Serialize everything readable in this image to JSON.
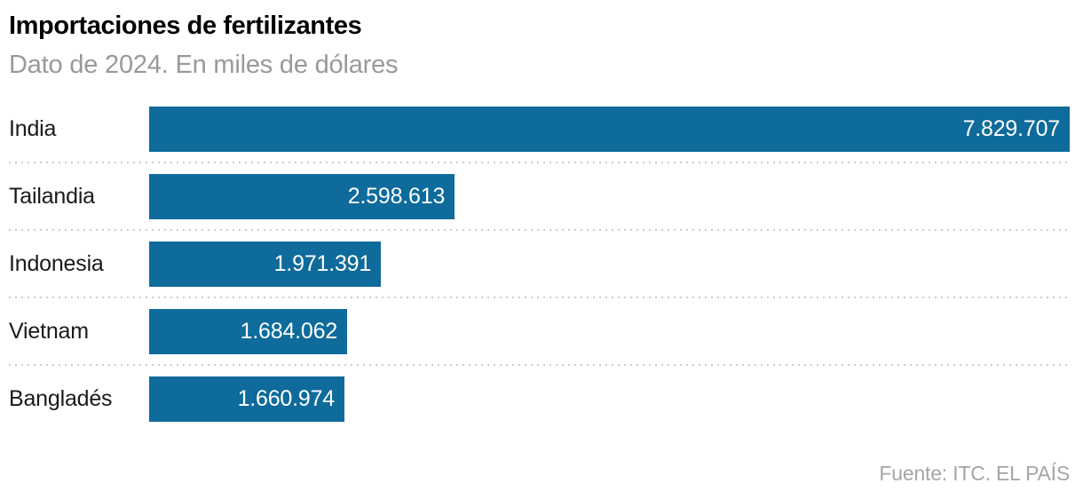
{
  "header": {
    "title": "Importaciones de fertilizantes",
    "subtitle": "Dato de 2024. En miles de dólares"
  },
  "chart_data": {
    "type": "bar",
    "orientation": "horizontal",
    "title": "Importaciones de fertilizantes",
    "subtitle": "Dato de 2024. En miles de dólares",
    "xlabel": "",
    "ylabel": "",
    "categories": [
      "India",
      "Tailandia",
      "Indonesia",
      "Vietnam",
      "Bangladés"
    ],
    "values": [
      7829707,
      2598613,
      1971391,
      1684062,
      1660974
    ],
    "value_labels": [
      "7.829.707",
      "2.598.613",
      "1.971.391",
      "1.684.062",
      "1.660.974"
    ],
    "xlim": [
      0,
      7829707
    ],
    "grid": false,
    "legend": false,
    "bar_color": "#0e6b9b",
    "value_label_position": "inside-end",
    "value_label_color": "#ffffff",
    "separator_style": "dotted"
  },
  "footer": {
    "source": "Fuente: ITC. EL PAÍS"
  }
}
